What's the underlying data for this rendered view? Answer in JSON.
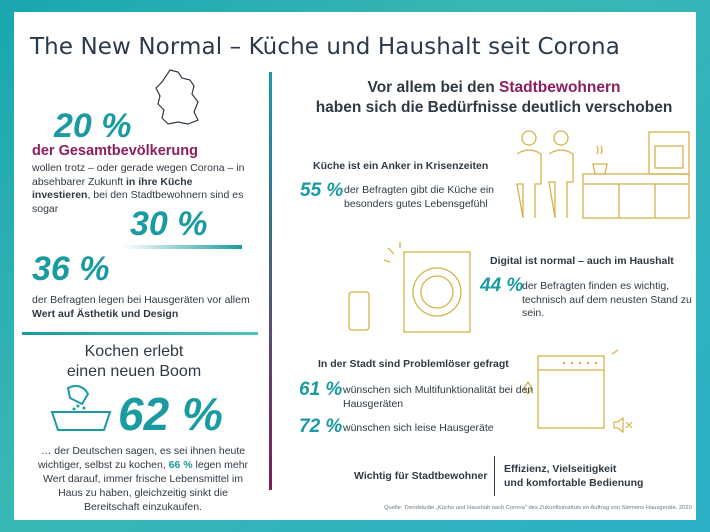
{
  "title": "The New Normal – Küche und Haushalt seit Corona",
  "left": {
    "stat1_value": "20 %",
    "stat1_label": "der Gesamtbevölkerung",
    "stat1_text_a": "wollen trotz – oder gerade wegen Corona – in absehbarer Zukunft ",
    "stat1_text_b": "in ihre Küche investieren",
    "stat1_text_c": ", bei den Stadtbewohnern sind es sogar",
    "stat2_value": "30 %",
    "stat3_value": "36 %",
    "stat3_text_a": "der Befragten legen bei Hausgeräten vor allem ",
    "stat3_text_b": "Wert auf Ästhetik und Design",
    "kochen_line1": "Kochen erlebt",
    "kochen_line2": "einen neuen Boom",
    "stat4_value": "62 %",
    "stat4_text_a": "… der Deutschen sagen, es sei ihnen heute wichtiger, selbst zu kochen, ",
    "stat4_text_b": "66 %",
    "stat4_text_c": " legen mehr Wert darauf, immer frische Lebensmittel im Haus zu haben, gleichzeitig sinkt die Bereitschaft einzukaufen."
  },
  "right": {
    "heading_a": "Vor allem bei den ",
    "heading_b": "Stadtbewohnern",
    "heading_c": "haben sich die Bedürfnisse deutlich verschoben",
    "k_heading": "Küche ist ein Anker in Krisenzeiten",
    "k_value": "55 %",
    "k_text": "der Befragten gibt die Küche ein besonders gutes Lebensgefühl",
    "d_heading": "Digital ist normal – auch im Haushalt",
    "d_value": "44 %",
    "d_text": "der Befragten finden es wichtig, technisch auf dem neusten Stand zu sein.",
    "s_heading": "In der Stadt sind Problemlöser gefragt",
    "s1_value": "61 %",
    "s1_text": "wünschen sich Multifunktionalität bei den Hausgeräten",
    "s2_value": "72 %",
    "s2_text": "wünschen sich leise Hausgeräte",
    "wichtig": "Wichtig für Stadtbewohner",
    "effizienz_1": "Effizienz, Vielseitigkeit",
    "effizienz_2": "und komfortable Bedienung"
  },
  "source": "Quelle: Trendstudie „Küche und Haushalt nach Corona\" des Zukunftsinstituts im Auftrag von Siemens Hausgeräte, 2020",
  "colors": {
    "teal": "#1a9ba1",
    "magenta": "#8c1e5e",
    "gold": "#d6b24a",
    "text": "#2f3a44"
  },
  "icons": [
    "germany-map-icon",
    "cooking-pan-icon",
    "couple-in-kitchen-icon",
    "washing-machine-icon",
    "smartphone-icon",
    "dishwasher-icon",
    "mute-speaker-icon"
  ]
}
